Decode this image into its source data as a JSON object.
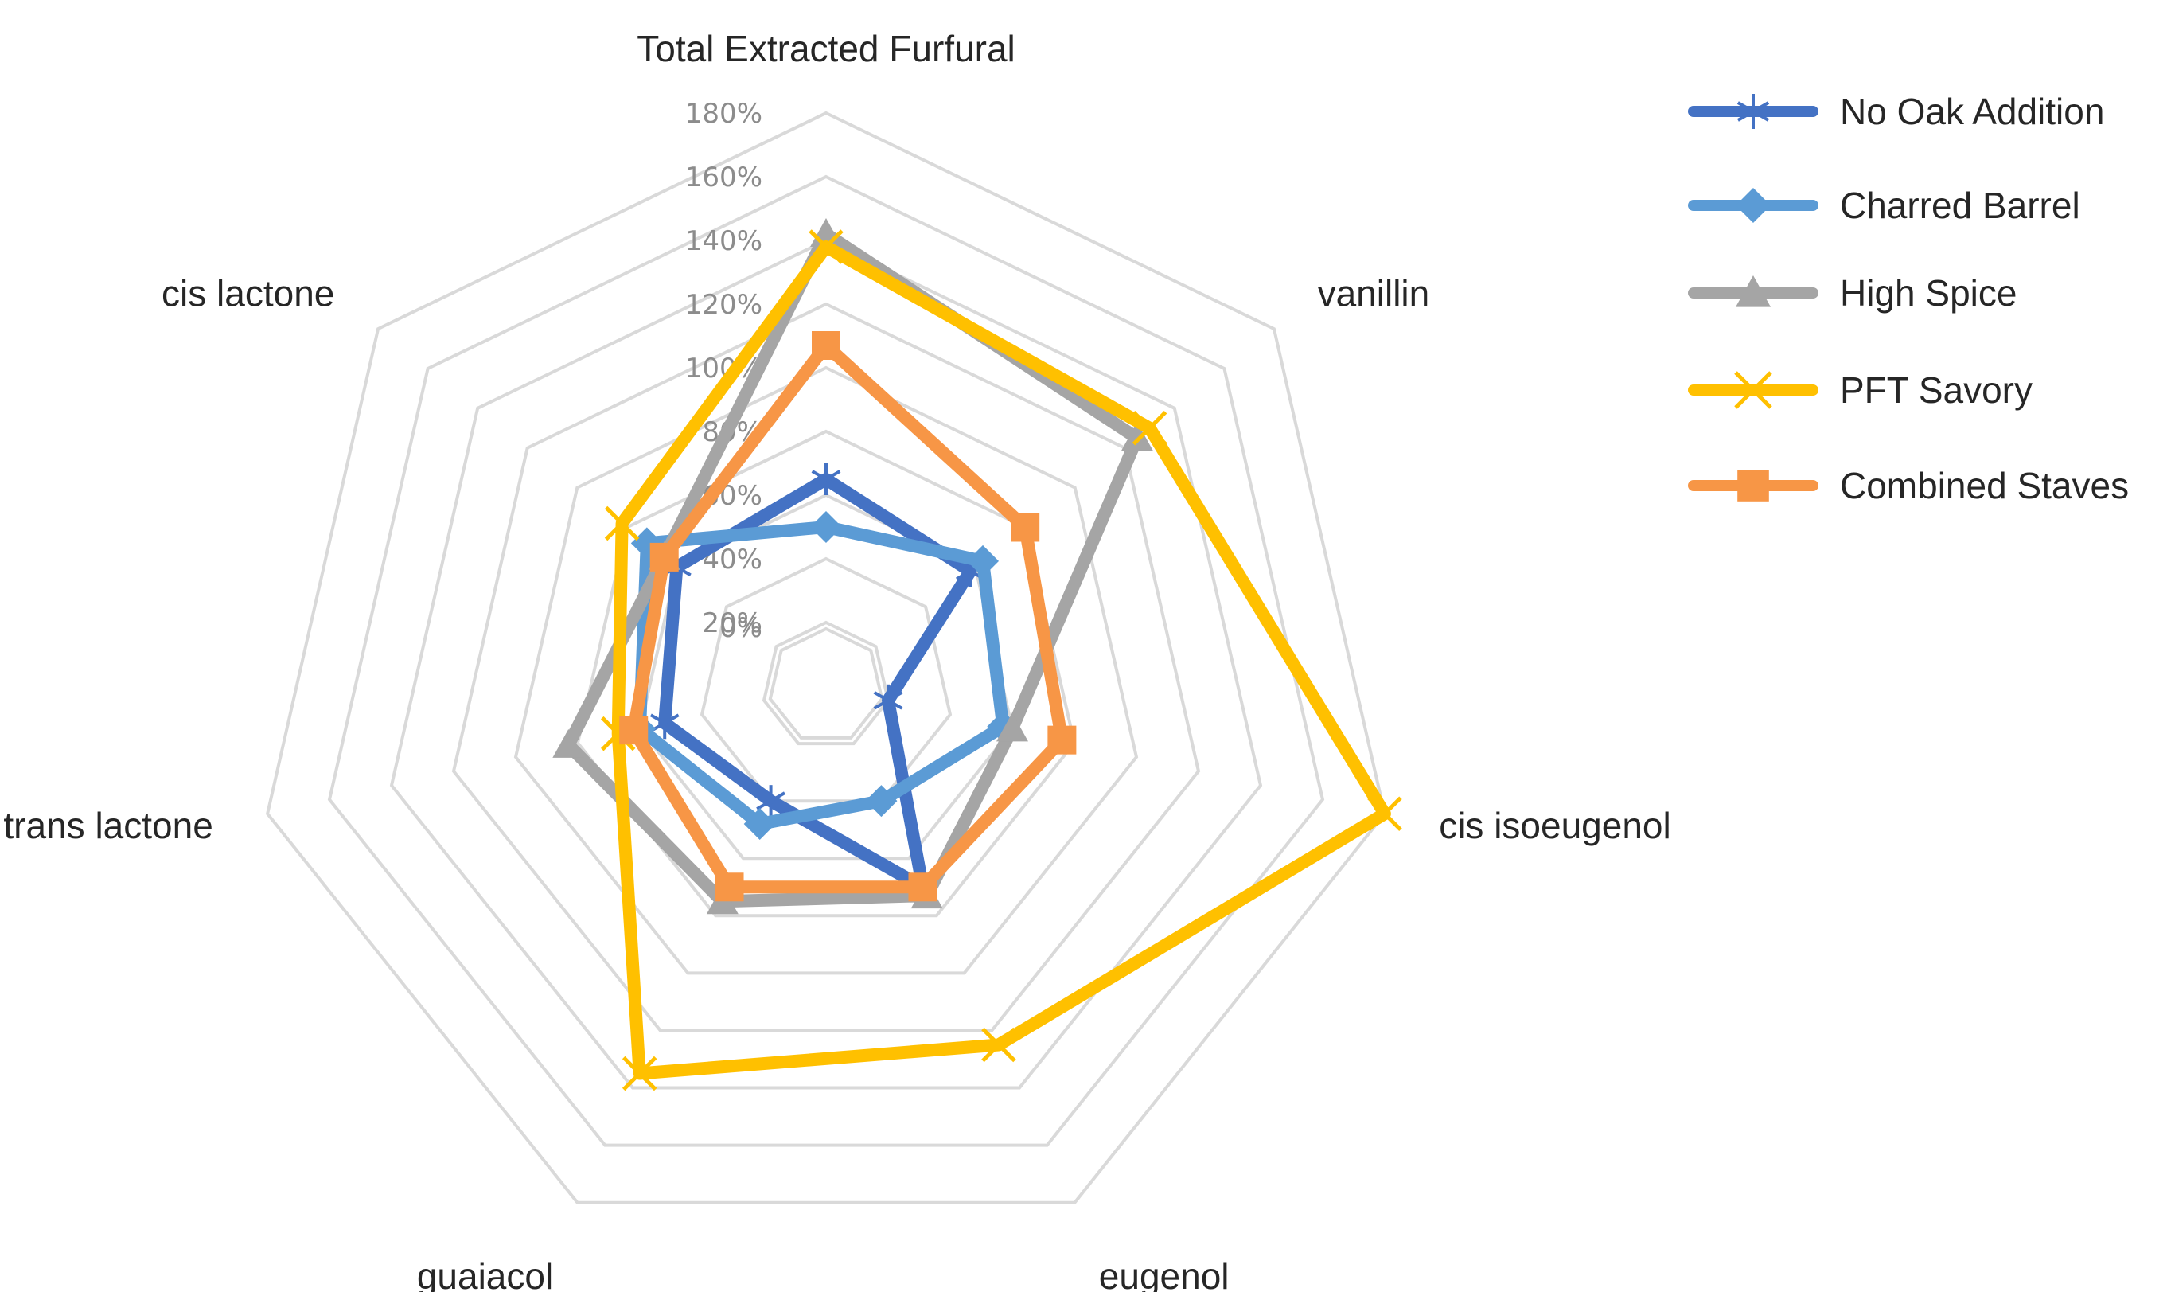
{
  "chart_data": {
    "type": "radar",
    "title": "",
    "categories": [
      "Total Extracted Furfural",
      "vanillin",
      "cis isoeugenol",
      "eugenol",
      "guaiacol",
      "trans lactone",
      "cis lactone"
    ],
    "rlim": [
      0,
      180
    ],
    "ticks": [
      "0%",
      "20%",
      "40%",
      "60%",
      "80%",
      "100%",
      "120%",
      "140%",
      "160%",
      "180%"
    ],
    "grid": true,
    "legend_position": "right",
    "series": [
      {
        "name": "No Oak Addition",
        "color": "#4472c4",
        "marker": "asterisk",
        "values": [
          65,
          58,
          20,
          70,
          40,
          52,
          60
        ]
      },
      {
        "name": "Charred Barrel",
        "color": "#5b9bd5",
        "marker": "diamond",
        "values": [
          50,
          63,
          57,
          40,
          48,
          60,
          72
        ]
      },
      {
        "name": "High Spice",
        "color": "#a5a5a5",
        "marker": "triangle",
        "values": [
          142,
          125,
          60,
          73,
          75,
          83,
          65
        ]
      },
      {
        "name": "PFT Savory",
        "color": "#ffc000",
        "marker": "x",
        "values": [
          138,
          130,
          180,
          125,
          135,
          67,
          82
        ]
      },
      {
        "name": "Combined Staves",
        "color": "#f79646",
        "marker": "square",
        "values": [
          107,
          80,
          76,
          70,
          70,
          62,
          65
        ]
      }
    ]
  }
}
